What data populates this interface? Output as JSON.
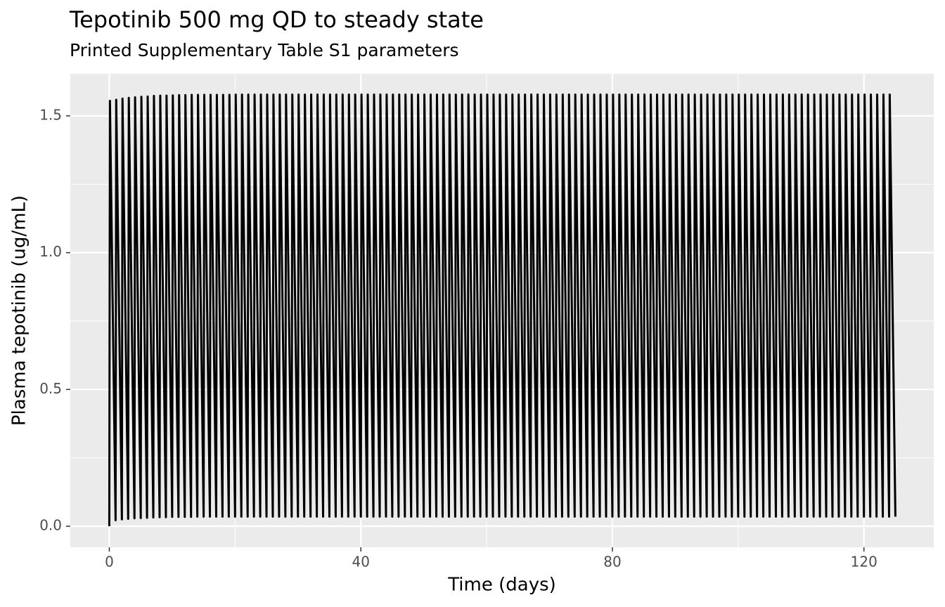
{
  "chart_data": {
    "type": "line",
    "title": "Tepotinib 500 mg QD to steady state",
    "subtitle": "Printed Supplementary Table S1 parameters",
    "x_label": "Time (days)",
    "y_label": "Plasma tepotinib (ug/mL)",
    "color": "#000000",
    "grid": true,
    "xlim": [
      -6.2,
      131.1
    ],
    "ylim": [
      -0.077,
      1.654
    ],
    "xticks": [
      0,
      40,
      80,
      120
    ],
    "yticks": [
      {
        "value": 0,
        "label": "0.0"
      },
      0.5,
      {
        "value": 1,
        "label": "1.0"
      },
      1.5
    ],
    "xminor": [
      20,
      60,
      100
    ],
    "yminor": [
      0.25,
      0.75,
      1.25
    ],
    "x": [
      0,
      0.1,
      1,
      1.1,
      2,
      2.1,
      3,
      3.1,
      4,
      4.1,
      5,
      5.1,
      6,
      6.1,
      7,
      7.1,
      8,
      8.1,
      9,
      9.1,
      10,
      10.1,
      11,
      11.1,
      12,
      12.1,
      13,
      13.1,
      14,
      14.1,
      15,
      15.1,
      16,
      16.1,
      17,
      17.1,
      18,
      18.1,
      19,
      19.1,
      20,
      20.1,
      21,
      21.1,
      22,
      22.1,
      23,
      23.1,
      24,
      24.1,
      25,
      25.1,
      26,
      26.1,
      27,
      27.1,
      28,
      28.1,
      29,
      29.1,
      30,
      30.1,
      31,
      31.1,
      32,
      32.1,
      33,
      33.1,
      34,
      34.1,
      35,
      35.1,
      36,
      36.1,
      37,
      37.1,
      38,
      38.1,
      39,
      39.1,
      40,
      40.1,
      41,
      41.1,
      42,
      42.1,
      43,
      43.1,
      44,
      44.1,
      45,
      45.1,
      46,
      46.1,
      47,
      47.1,
      48,
      48.1,
      49,
      49.1,
      50,
      50.1,
      51,
      51.1,
      52,
      52.1,
      53,
      53.1,
      54,
      54.1,
      55,
      55.1,
      56,
      56.1,
      57,
      57.1,
      58,
      58.1,
      59,
      59.1,
      60,
      60.1,
      61,
      61.1,
      62,
      62.1,
      63,
      63.1,
      64,
      64.1,
      65,
      65.1,
      66,
      66.1,
      67,
      67.1,
      68,
      68.1,
      69,
      69.1,
      70,
      70.1,
      71,
      71.1,
      72,
      72.1,
      73,
      73.1,
      74,
      74.1,
      75,
      75.1,
      76,
      76.1,
      77,
      77.1,
      78,
      78.1,
      79,
      79.1,
      80,
      80.1,
      81,
      81.1,
      82,
      82.1,
      83,
      83.1,
      84,
      84.1,
      85,
      85.1,
      86,
      86.1,
      87,
      87.1,
      88,
      88.1,
      89,
      89.1,
      90,
      90.1,
      91,
      91.1,
      92,
      92.1,
      93,
      93.1,
      94,
      94.1,
      95,
      95.1,
      96,
      96.1,
      97,
      97.1,
      98,
      98.1,
      99,
      99.1,
      100,
      100.1,
      101,
      101.1,
      102,
      102.1,
      103,
      103.1,
      104,
      104.1,
      105,
      105.1,
      106,
      106.1,
      107,
      107.1,
      108,
      108.1,
      109,
      109.1,
      110,
      110.1,
      111,
      111.1,
      112,
      112.1,
      113,
      113.1,
      114,
      114.1,
      115,
      115.1,
      116,
      116.1,
      117,
      117.1,
      118,
      118.1,
      119,
      119.1,
      120,
      120.1,
      121,
      121.1,
      122,
      122.1,
      123,
      123.1,
      124,
      124.1,
      125
    ],
    "values": [
      0,
      1.555,
      0.022,
      1.559,
      0.025,
      1.563,
      0.027,
      1.566,
      0.029,
      1.568,
      0.03,
      1.57,
      0.031,
      1.571,
      0.032,
      1.573,
      0.033,
      1.574,
      0.033,
      1.574,
      0.034,
      1.575,
      0.034,
      1.576,
      0.034,
      1.576,
      0.034,
      1.577,
      0.035,
      1.577,
      0.035,
      1.577,
      0.035,
      1.577,
      0.035,
      1.577,
      0.035,
      1.577,
      0.035,
      1.577,
      0.035,
      1.578,
      0.035,
      1.578,
      0.035,
      1.578,
      0.035,
      1.578,
      0.035,
      1.578,
      0.035,
      1.578,
      0.035,
      1.578,
      0.035,
      1.578,
      0.035,
      1.578,
      0.035,
      1.578,
      0.035,
      1.578,
      0.035,
      1.578,
      0.035,
      1.578,
      0.035,
      1.578,
      0.035,
      1.578,
      0.035,
      1.578,
      0.035,
      1.578,
      0.035,
      1.578,
      0.035,
      1.578,
      0.035,
      1.578,
      0.035,
      1.578,
      0.035,
      1.578,
      0.035,
      1.578,
      0.035,
      1.578,
      0.035,
      1.578,
      0.035,
      1.578,
      0.035,
      1.578,
      0.035,
      1.578,
      0.035,
      1.578,
      0.035,
      1.578,
      0.035,
      1.578,
      0.035,
      1.578,
      0.035,
      1.578,
      0.035,
      1.578,
      0.035,
      1.578,
      0.035,
      1.578,
      0.035,
      1.578,
      0.035,
      1.578,
      0.035,
      1.578,
      0.035,
      1.578,
      0.035,
      1.578,
      0.035,
      1.578,
      0.035,
      1.578,
      0.035,
      1.578,
      0.035,
      1.578,
      0.035,
      1.578,
      0.035,
      1.578,
      0.035,
      1.578,
      0.035,
      1.578,
      0.035,
      1.578,
      0.035,
      1.578,
      0.035,
      1.578,
      0.035,
      1.578,
      0.035,
      1.578,
      0.035,
      1.578,
      0.035,
      1.578,
      0.035,
      1.578,
      0.035,
      1.578,
      0.035,
      1.578,
      0.035,
      1.578,
      0.035,
      1.578,
      0.035,
      1.578,
      0.035,
      1.578,
      0.035,
      1.578,
      0.035,
      1.578,
      0.035,
      1.578,
      0.035,
      1.578,
      0.035,
      1.578,
      0.035,
      1.578,
      0.035,
      1.578,
      0.035,
      1.578,
      0.035,
      1.578,
      0.035,
      1.578,
      0.035,
      1.578,
      0.035,
      1.578,
      0.035,
      1.578,
      0.035,
      1.578,
      0.035,
      1.578,
      0.035,
      1.578,
      0.035,
      1.578,
      0.035,
      1.578,
      0.035,
      1.578,
      0.035,
      1.578,
      0.035,
      1.578,
      0.035,
      1.578,
      0.035,
      1.578,
      0.035,
      1.578,
      0.035,
      1.578,
      0.035,
      1.578,
      0.035,
      1.578,
      0.035,
      1.578,
      0.035,
      1.578,
      0.035,
      1.578,
      0.035,
      1.578,
      0.035,
      1.578,
      0.035,
      1.578,
      0.035,
      1.578,
      0.035,
      1.578,
      0.035,
      1.578,
      0.035,
      1.578,
      0.035,
      1.578,
      0.035,
      1.578,
      0.035,
      1.578,
      0.035,
      1.578,
      0.035,
      1.578,
      0.035
    ]
  }
}
